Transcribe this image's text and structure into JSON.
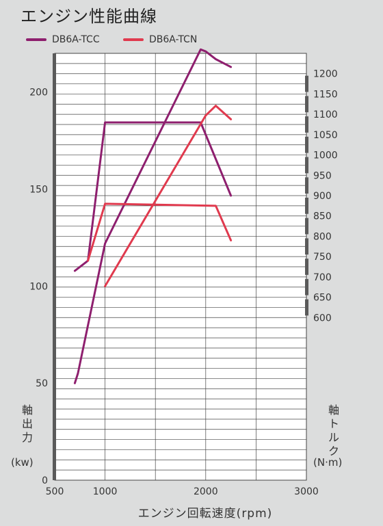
{
  "title": "エンジン性能曲線",
  "legend": [
    {
      "name": "DB6A-TCC",
      "color": "#8e1f6e"
    },
    {
      "name": "DB6A-TCN",
      "color": "#e03a4e"
    }
  ],
  "axes": {
    "left_title": "軸出力",
    "left_unit": "(kw)",
    "right_title": "軸トルク",
    "right_unit": "(N·m)",
    "x_title": "エンジン回転速度(rpm)"
  },
  "chart_data": {
    "type": "line",
    "title": "エンジン性能曲線",
    "xlabel": "エンジン回転速度(rpm)",
    "ylabel_left": "軸出力 (kw)",
    "ylabel_right": "軸トルク (N·m)",
    "xlim": [
      500,
      3000
    ],
    "ylim_left": [
      0,
      220
    ],
    "ylim_right": [
      200,
      1250
    ],
    "x_ticks": [
      500,
      1000,
      2000,
      3000
    ],
    "y_left_ticks": [
      0,
      50,
      100,
      150,
      200
    ],
    "y_right_ticks": [
      600,
      650,
      700,
      750,
      800,
      850,
      900,
      950,
      1000,
      1050,
      1100,
      1150,
      1200
    ],
    "grid": true,
    "legend_position": "top-left",
    "series": [
      {
        "name": "DB6A-TCC",
        "quantity": "power",
        "axis": "left",
        "color": "#8e1f6e",
        "points": [
          [
            700,
            50
          ],
          [
            730,
            55
          ],
          [
            1000,
            122
          ],
          [
            1950,
            222
          ],
          [
            2000,
            221
          ],
          [
            2100,
            217
          ],
          [
            2250,
            213
          ]
        ]
      },
      {
        "name": "DB6A-TCC",
        "quantity": "torque",
        "axis": "right",
        "color": "#8e1f6e",
        "points": [
          [
            700,
            715
          ],
          [
            830,
            740
          ],
          [
            1000,
            1080
          ],
          [
            1950,
            1080
          ],
          [
            2100,
            990
          ],
          [
            2250,
            900
          ]
        ]
      },
      {
        "name": "DB6A-TCN",
        "quantity": "power",
        "axis": "left",
        "color": "#e03a4e",
        "points": [
          [
            1000,
            100
          ],
          [
            2000,
            188
          ],
          [
            2100,
            193
          ],
          [
            2250,
            186
          ]
        ]
      },
      {
        "name": "DB6A-TCN",
        "quantity": "torque",
        "axis": "right",
        "color": "#e03a4e",
        "points": [
          [
            830,
            740
          ],
          [
            1000,
            880
          ],
          [
            2100,
            875
          ],
          [
            2250,
            790
          ]
        ]
      }
    ]
  }
}
